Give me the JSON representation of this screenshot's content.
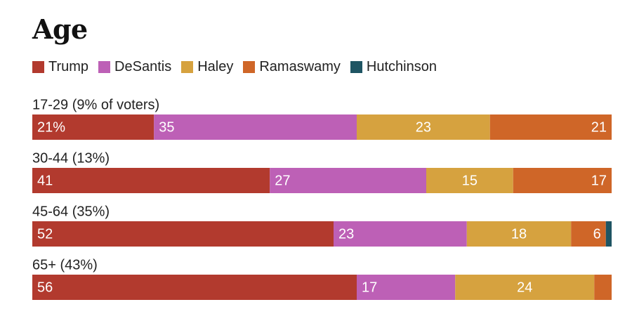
{
  "chart_data": {
    "type": "bar",
    "orientation": "horizontal-stacked",
    "title": "Age",
    "series": [
      {
        "name": "Trump",
        "color": "#b23a2e"
      },
      {
        "name": "DeSantis",
        "color": "#bd60b6"
      },
      {
        "name": "Haley",
        "color": "#d6a23f"
      },
      {
        "name": "Ramaswamy",
        "color": "#cf6628"
      },
      {
        "name": "Hutchinson",
        "color": "#1f5563"
      }
    ],
    "rows": [
      {
        "label": "17-29 (9% of voters)",
        "values": [
          21,
          35,
          23,
          21,
          0
        ],
        "data_labels": [
          "21%",
          "35",
          "23",
          "21",
          ""
        ]
      },
      {
        "label": "30-44 (13%)",
        "values": [
          41,
          27,
          15,
          17,
          0
        ],
        "data_labels": [
          "41",
          "27",
          "15",
          "17",
          ""
        ]
      },
      {
        "label": "45-64 (35%)",
        "values": [
          52,
          23,
          18,
          6,
          1
        ],
        "data_labels": [
          "52",
          "23",
          "18",
          "6",
          ""
        ]
      },
      {
        "label": "65+ (43%)",
        "values": [
          56,
          17,
          24,
          3,
          0
        ],
        "data_labels": [
          "56",
          "17",
          "24",
          "",
          ""
        ]
      }
    ],
    "xlim": [
      0,
      100
    ],
    "grid": false,
    "legend_position": "top-left"
  }
}
